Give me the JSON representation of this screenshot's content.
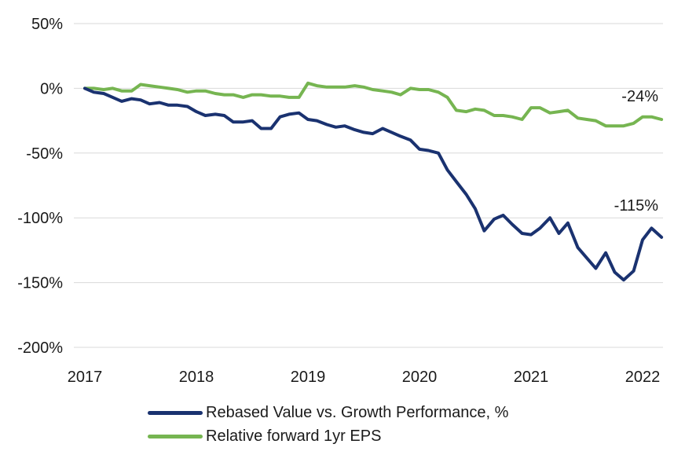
{
  "chart_data": {
    "type": "line",
    "title": "",
    "xlabel": "",
    "ylabel": "",
    "ylim": [
      -200,
      50
    ],
    "xlim": [
      2017.0,
      2022.22
    ],
    "grid": "horizontal",
    "legend_position": "bottom",
    "y_ticks": [
      50,
      0,
      -50,
      -100,
      -150,
      -200
    ],
    "y_tick_labels": [
      "50%",
      "0%",
      "-50%",
      "-100%",
      "-150%",
      "-200%"
    ],
    "x_ticks": [
      2017,
      2018,
      2019,
      2020,
      2021,
      2022
    ],
    "x_tick_labels": [
      "2017",
      "2018",
      "2019",
      "2020",
      "2021",
      "2022"
    ],
    "series": [
      {
        "name": "Rebased Value vs. Growth Performance, %",
        "color": "#1a3270",
        "points": [
          [
            2017.0,
            0
          ],
          [
            2017.08,
            -3
          ],
          [
            2017.17,
            -4
          ],
          [
            2017.25,
            -7
          ],
          [
            2017.33,
            -10
          ],
          [
            2017.42,
            -8
          ],
          [
            2017.5,
            -9
          ],
          [
            2017.58,
            -12
          ],
          [
            2017.67,
            -11
          ],
          [
            2017.75,
            -13
          ],
          [
            2017.83,
            -13
          ],
          [
            2017.92,
            -14
          ],
          [
            2018.0,
            -18
          ],
          [
            2018.08,
            -21
          ],
          [
            2018.17,
            -20
          ],
          [
            2018.25,
            -21
          ],
          [
            2018.33,
            -26
          ],
          [
            2018.42,
            -26
          ],
          [
            2018.5,
            -25
          ],
          [
            2018.58,
            -31
          ],
          [
            2018.67,
            -31
          ],
          [
            2018.75,
            -22
          ],
          [
            2018.83,
            -20
          ],
          [
            2018.92,
            -19
          ],
          [
            2019.0,
            -24
          ],
          [
            2019.08,
            -25
          ],
          [
            2019.17,
            -28
          ],
          [
            2019.25,
            -30
          ],
          [
            2019.33,
            -29
          ],
          [
            2019.42,
            -32
          ],
          [
            2019.5,
            -34
          ],
          [
            2019.58,
            -35
          ],
          [
            2019.67,
            -31
          ],
          [
            2019.75,
            -34
          ],
          [
            2019.83,
            -37
          ],
          [
            2019.92,
            -40
          ],
          [
            2020.0,
            -47
          ],
          [
            2020.08,
            -48
          ],
          [
            2020.17,
            -50
          ],
          [
            2020.25,
            -63
          ],
          [
            2020.33,
            -72
          ],
          [
            2020.42,
            -82
          ],
          [
            2020.5,
            -93
          ],
          [
            2020.58,
            -110
          ],
          [
            2020.67,
            -101
          ],
          [
            2020.75,
            -98
          ],
          [
            2020.83,
            -105
          ],
          [
            2020.92,
            -112
          ],
          [
            2021.0,
            -113
          ],
          [
            2021.08,
            -108
          ],
          [
            2021.17,
            -100
          ],
          [
            2021.25,
            -112
          ],
          [
            2021.33,
            -104
          ],
          [
            2021.42,
            -123
          ],
          [
            2021.5,
            -131
          ],
          [
            2021.58,
            -139
          ],
          [
            2021.67,
            -127
          ],
          [
            2021.75,
            -142
          ],
          [
            2021.83,
            -148
          ],
          [
            2021.92,
            -141
          ],
          [
            2022.0,
            -117
          ],
          [
            2022.08,
            -108
          ],
          [
            2022.17,
            -115
          ]
        ],
        "end_label": "-115%"
      },
      {
        "name": "Relative forward 1yr EPS",
        "color": "#76b551",
        "points": [
          [
            2017.0,
            0
          ],
          [
            2017.08,
            0
          ],
          [
            2017.17,
            -1
          ],
          [
            2017.25,
            0
          ],
          [
            2017.33,
            -2
          ],
          [
            2017.42,
            -2
          ],
          [
            2017.5,
            3
          ],
          [
            2017.58,
            2
          ],
          [
            2017.67,
            1
          ],
          [
            2017.75,
            0
          ],
          [
            2017.83,
            -1
          ],
          [
            2017.92,
            -3
          ],
          [
            2018.0,
            -2
          ],
          [
            2018.08,
            -2
          ],
          [
            2018.17,
            -4
          ],
          [
            2018.25,
            -5
          ],
          [
            2018.33,
            -5
          ],
          [
            2018.42,
            -7
          ],
          [
            2018.5,
            -5
          ],
          [
            2018.58,
            -5
          ],
          [
            2018.67,
            -6
          ],
          [
            2018.75,
            -6
          ],
          [
            2018.83,
            -7
          ],
          [
            2018.92,
            -7
          ],
          [
            2019.0,
            4
          ],
          [
            2019.08,
            2
          ],
          [
            2019.17,
            1
          ],
          [
            2019.25,
            1
          ],
          [
            2019.33,
            1
          ],
          [
            2019.42,
            2
          ],
          [
            2019.5,
            1
          ],
          [
            2019.58,
            -1
          ],
          [
            2019.67,
            -2
          ],
          [
            2019.75,
            -3
          ],
          [
            2019.83,
            -5
          ],
          [
            2019.92,
            0
          ],
          [
            2020.0,
            -1
          ],
          [
            2020.08,
            -1
          ],
          [
            2020.17,
            -3
          ],
          [
            2020.25,
            -7
          ],
          [
            2020.33,
            -17
          ],
          [
            2020.42,
            -18
          ],
          [
            2020.5,
            -16
          ],
          [
            2020.58,
            -17
          ],
          [
            2020.67,
            -21
          ],
          [
            2020.75,
            -21
          ],
          [
            2020.83,
            -22
          ],
          [
            2020.92,
            -24
          ],
          [
            2021.0,
            -15
          ],
          [
            2021.08,
            -15
          ],
          [
            2021.17,
            -19
          ],
          [
            2021.25,
            -18
          ],
          [
            2021.33,
            -17
          ],
          [
            2021.42,
            -23
          ],
          [
            2021.5,
            -24
          ],
          [
            2021.58,
            -25
          ],
          [
            2021.67,
            -29
          ],
          [
            2021.75,
            -29
          ],
          [
            2021.83,
            -29
          ],
          [
            2021.92,
            -27
          ],
          [
            2022.0,
            -22
          ],
          [
            2022.08,
            -22
          ],
          [
            2022.17,
            -24
          ]
        ],
        "end_label": "-24%"
      }
    ]
  }
}
